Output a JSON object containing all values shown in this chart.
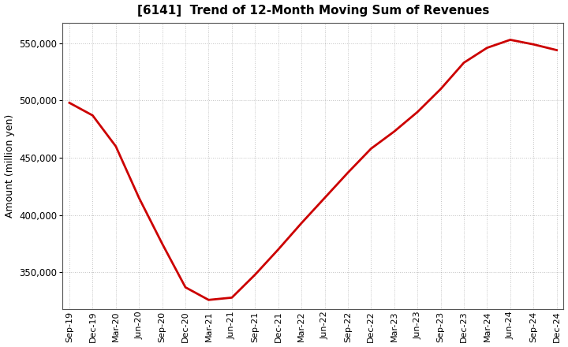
{
  "title": "[6141]  Trend of 12-Month Moving Sum of Revenues",
  "ylabel": "Amount (million yen)",
  "line_color": "#cc0000",
  "line_width": 2.0,
  "background_color": "#ffffff",
  "plot_bg_color": "#ffffff",
  "grid_color": "#999999",
  "ylim": [
    318000,
    568000
  ],
  "yticks": [
    350000,
    400000,
    450000,
    500000,
    550000
  ],
  "x_labels": [
    "Sep-19",
    "Dec-19",
    "Mar-20",
    "Jun-20",
    "Sep-20",
    "Dec-20",
    "Mar-21",
    "Jun-21",
    "Sep-21",
    "Dec-21",
    "Mar-22",
    "Jun-22",
    "Sep-22",
    "Dec-22",
    "Mar-23",
    "Jun-23",
    "Sep-23",
    "Dec-23",
    "Mar-24",
    "Jun-24",
    "Sep-24",
    "Dec-24"
  ],
  "values": [
    498000,
    487000,
    460000,
    415000,
    375000,
    337000,
    326000,
    328000,
    348000,
    370000,
    393000,
    415000,
    437000,
    458000,
    473000,
    490000,
    510000,
    533000,
    546000,
    553000,
    549000,
    544000
  ]
}
